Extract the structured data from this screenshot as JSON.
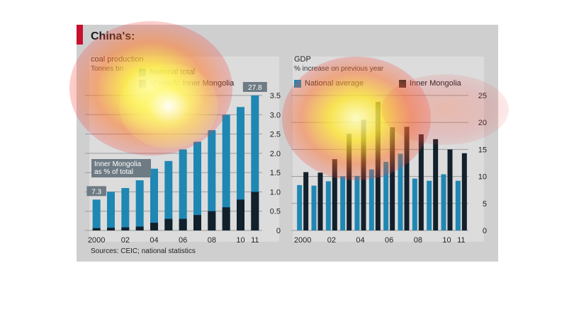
{
  "title": "China's:",
  "left_panel": {
    "title": "coal production",
    "subtitle": "Tonnes bn",
    "legend": {
      "national_total": "National total",
      "of_which_prefix": "of which:",
      "inner_mongolia": "Inner Mongolia"
    },
    "callout_first": "7.3",
    "callout_last": "27.8",
    "callout_label": "Inner Mongolia as % of total"
  },
  "right_panel": {
    "title": "GDP",
    "subtitle": "% increase on previous year",
    "legend": {
      "national_average": "National average",
      "inner_mongolia": "Inner Mongolia"
    }
  },
  "sources": "Sources: CEIC; national statistics",
  "colors": {
    "blue": "#1f87b3",
    "dark": "#12202b",
    "panel": "#dcdcdc",
    "accent": "#c8102e"
  },
  "chart_data": [
    {
      "type": "bar",
      "title": "coal production",
      "ylabel": "Tonnes bn",
      "categories": [
        "2000",
        "01",
        "02",
        "03",
        "04",
        "05",
        "06",
        "07",
        "08",
        "09",
        "10",
        "11"
      ],
      "x_tick_labels": [
        "2000",
        "02",
        "04",
        "06",
        "08",
        "10",
        "11"
      ],
      "ylim": [
        0,
        3.5
      ],
      "yticks": [
        0,
        0.5,
        1.0,
        1.5,
        2.0,
        2.5,
        3.0,
        3.5
      ],
      "y_tick_labels": [
        "0",
        "0.5",
        "1.0",
        "1.5",
        "2.0",
        "2.5",
        "3.0",
        "3.5"
      ],
      "series": [
        {
          "name": "National total",
          "values": [
            0.8,
            1.0,
            1.1,
            1.3,
            1.6,
            1.8,
            2.1,
            2.3,
            2.6,
            3.0,
            3.2,
            3.5
          ]
        },
        {
          "name": "Inner Mongolia",
          "values": [
            0.06,
            0.07,
            0.08,
            0.1,
            0.2,
            0.3,
            0.3,
            0.4,
            0.5,
            0.6,
            0.8,
            1.0
          ]
        }
      ],
      "annotations": [
        {
          "label": "7.3",
          "category": "2000"
        },
        {
          "label": "27.8",
          "category": "11"
        }
      ]
    },
    {
      "type": "bar",
      "title": "GDP",
      "ylabel": "% increase on previous year",
      "categories": [
        "2000",
        "01",
        "02",
        "03",
        "04",
        "05",
        "06",
        "07",
        "08",
        "09",
        "10",
        "11"
      ],
      "x_tick_labels": [
        "2000",
        "02",
        "04",
        "06",
        "08",
        "10",
        "11"
      ],
      "ylim": [
        0,
        25
      ],
      "yticks": [
        0,
        5,
        10,
        15,
        20,
        25
      ],
      "y_tick_labels": [
        "0",
        "5",
        "10",
        "15",
        "20",
        "25"
      ],
      "series": [
        {
          "name": "National average",
          "values": [
            8.4,
            8.3,
            9.1,
            10.0,
            10.1,
            11.3,
            12.7,
            14.2,
            9.6,
            9.2,
            10.4,
            9.2
          ]
        },
        {
          "name": "Inner Mongolia",
          "values": [
            10.8,
            10.7,
            13.2,
            17.9,
            20.5,
            23.8,
            19.1,
            19.2,
            17.8,
            16.9,
            15.0,
            14.3
          ]
        }
      ]
    }
  ]
}
